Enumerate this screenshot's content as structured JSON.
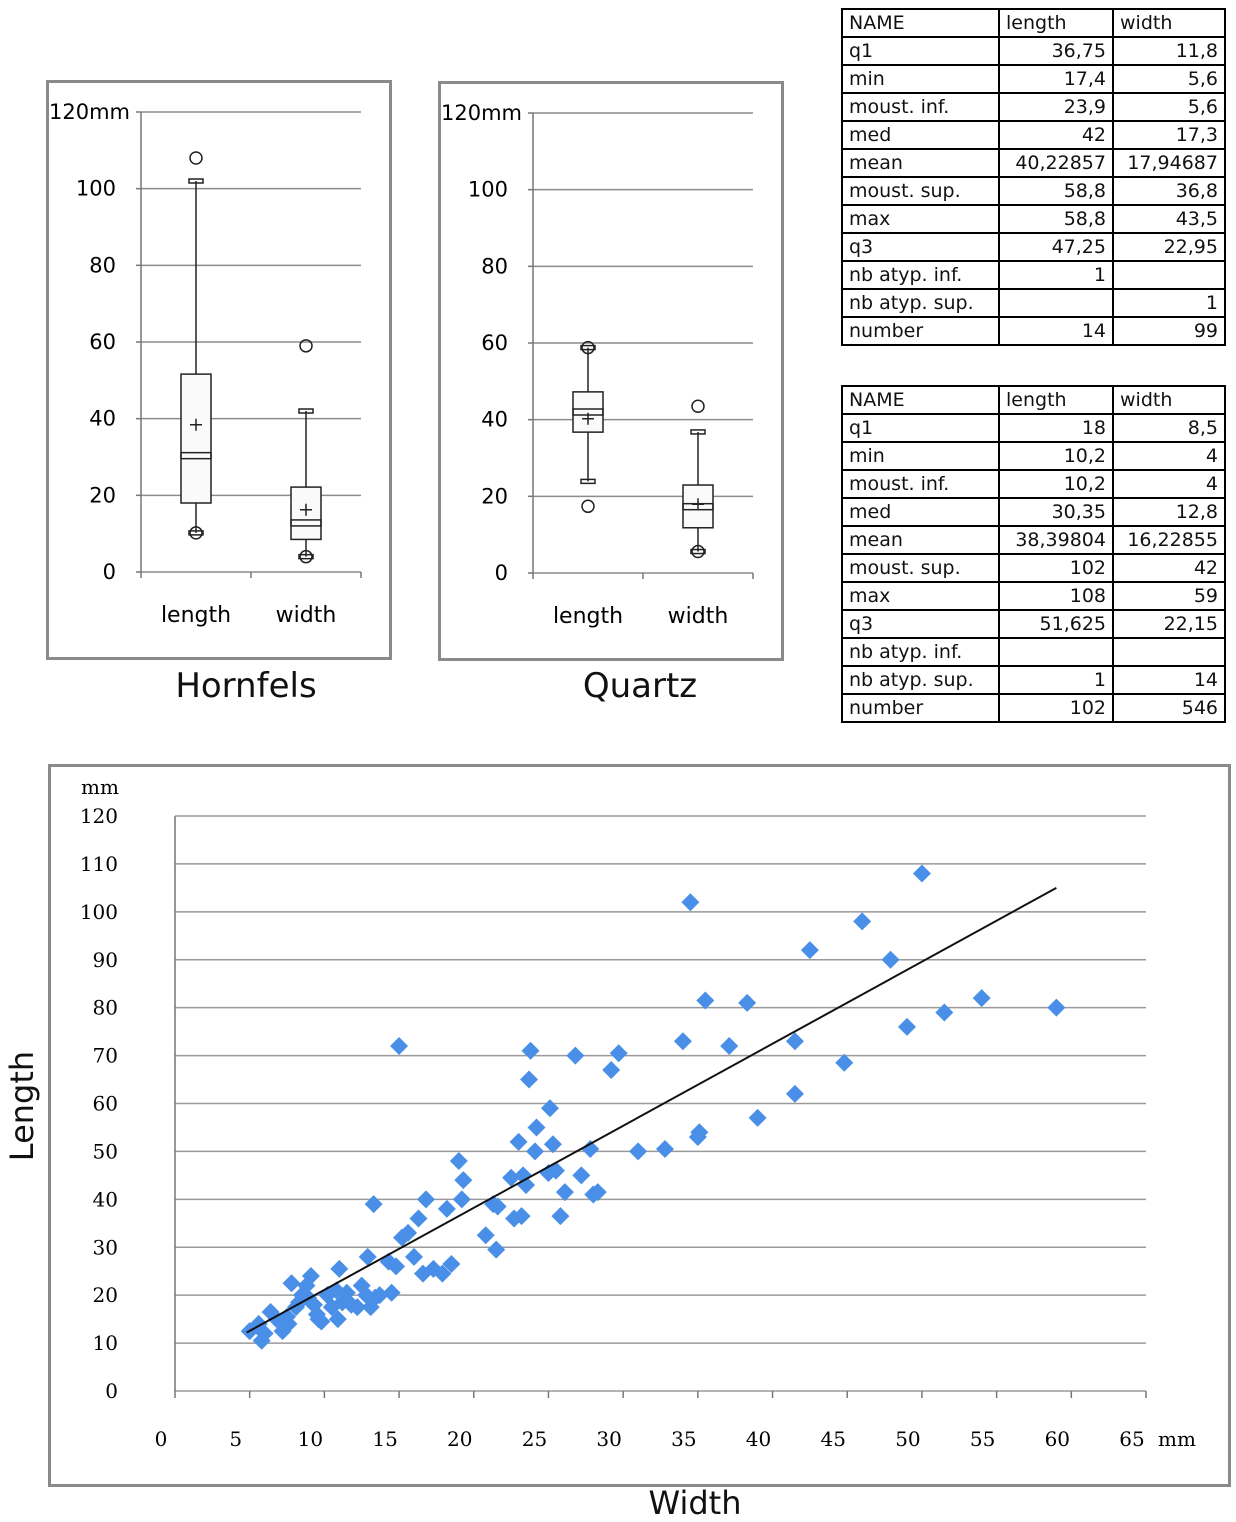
{
  "boxplots": [
    {
      "title": "Hornfels",
      "y_top_label": "120mm",
      "y_ticks": [
        "100",
        "80",
        "60",
        "40",
        "20",
        "0"
      ],
      "categories": [
        "length",
        "width"
      ]
    },
    {
      "title": "Quartz",
      "y_top_label": "120mm",
      "y_ticks": [
        "100",
        "80",
        "60",
        "40",
        "20",
        "0"
      ],
      "categories": [
        "length",
        "width"
      ]
    }
  ],
  "tables": [
    {
      "header": [
        "NAME",
        "length",
        "width"
      ],
      "rows": [
        [
          "q1",
          "36,75",
          "11,8"
        ],
        [
          "min",
          "17,4",
          "5,6"
        ],
        [
          "moust. inf.",
          "23,9",
          "5,6"
        ],
        [
          "med",
          "42",
          "17,3"
        ],
        [
          "mean",
          "40,22857",
          "17,94687"
        ],
        [
          "moust. sup.",
          "58,8",
          "36,8"
        ],
        [
          "max",
          "58,8",
          "43,5"
        ],
        [
          "q3",
          "47,25",
          "22,95"
        ],
        [
          "nb atyp. inf.",
          "1",
          ""
        ],
        [
          "nb atyp. sup.",
          "",
          "1"
        ],
        [
          "number",
          "14",
          "99"
        ]
      ]
    },
    {
      "header": [
        "NAME",
        "length",
        "width"
      ],
      "rows": [
        [
          "q1",
          "18",
          "8,5"
        ],
        [
          "min",
          "10,2",
          "4"
        ],
        [
          "moust. inf.",
          "10,2",
          "4"
        ],
        [
          "med",
          "30,35",
          "12,8"
        ],
        [
          "mean",
          "38,39804",
          "16,22855"
        ],
        [
          "moust. sup.",
          "102",
          "42"
        ],
        [
          "max",
          "108",
          "59"
        ],
        [
          "q3",
          "51,625",
          "22,15"
        ],
        [
          "nb atyp. inf.",
          "",
          ""
        ],
        [
          "nb atyp. sup.",
          "1",
          "14"
        ],
        [
          "number",
          "102",
          "546"
        ]
      ]
    }
  ],
  "chart_data": [
    {
      "type": "box",
      "title": "Hornfels",
      "ylim": [
        0,
        120
      ],
      "y_unit": "mm",
      "categories": [
        "length",
        "width"
      ],
      "boxes": [
        {
          "q1": 18,
          "median": 30.35,
          "q3": 51.625,
          "mean": 38.39804,
          "whisker_low": 10.2,
          "whisker_high": 102,
          "outliers": [
            108
          ]
        },
        {
          "q1": 8.5,
          "median": 12.8,
          "q3": 22.15,
          "mean": 16.22855,
          "whisker_low": 4,
          "whisker_high": 42,
          "outliers": [
            59
          ]
        }
      ]
    },
    {
      "type": "box",
      "title": "Quartz",
      "ylim": [
        0,
        120
      ],
      "y_unit": "mm",
      "categories": [
        "length",
        "width"
      ],
      "boxes": [
        {
          "q1": 36.75,
          "median": 42,
          "q3": 47.25,
          "mean": 40.22857,
          "whisker_low": 23.9,
          "whisker_high": 58.8,
          "outliers": [
            17.4
          ]
        },
        {
          "q1": 11.8,
          "median": 17.3,
          "q3": 22.95,
          "mean": 17.94687,
          "whisker_low": 5.6,
          "whisker_high": 36.8,
          "outliers": [
            43.5
          ]
        }
      ]
    },
    {
      "type": "scatter",
      "xlabel": "Width",
      "ylabel": "Length",
      "x_unit": "mm",
      "y_unit": "mm",
      "xlim": [
        0,
        65
      ],
      "ylim": [
        0,
        120
      ],
      "x_ticks": [
        "0",
        "5",
        "10",
        "15",
        "20",
        "25",
        "30",
        "35",
        "40",
        "45",
        "50",
        "55",
        "60",
        "65"
      ],
      "y_ticks": [
        "0",
        "10",
        "20",
        "30",
        "40",
        "50",
        "60",
        "70",
        "80",
        "90",
        "100",
        "110",
        "120"
      ],
      "grid": "horizontal",
      "marker_color": "#4a8fe7",
      "trendline": {
        "x": [
          4.8,
          59
        ],
        "y": [
          12.2,
          105
        ]
      },
      "points": [
        [
          5.0,
          12.5
        ],
        [
          5.6,
          14.0
        ],
        [
          5.8,
          10.5
        ],
        [
          6.4,
          16.5
        ],
        [
          6.8,
          15.0
        ],
        [
          6.0,
          12.0
        ],
        [
          7.2,
          12.5
        ],
        [
          7.5,
          15.5
        ],
        [
          7.8,
          22.5
        ],
        [
          8.1,
          17.5
        ],
        [
          8.5,
          20.0
        ],
        [
          8.8,
          22.0
        ],
        [
          9.1,
          24.0
        ],
        [
          9.3,
          18.0
        ],
        [
          9.6,
          15.0
        ],
        [
          9.8,
          14.5
        ],
        [
          10.2,
          20.0
        ],
        [
          10.5,
          17.5
        ],
        [
          10.9,
          15.0
        ],
        [
          11.2,
          18.5
        ],
        [
          11.5,
          20.5
        ],
        [
          11.8,
          18.0
        ],
        [
          12.2,
          17.5
        ],
        [
          12.5,
          22.0
        ],
        [
          12.8,
          20.0
        ],
        [
          13.1,
          17.5
        ],
        [
          13.4,
          19.5
        ],
        [
          12.9,
          28.0
        ],
        [
          13.7,
          20.0
        ],
        [
          11.0,
          25.5
        ],
        [
          14.3,
          27.0
        ],
        [
          14.8,
          26.0
        ],
        [
          14.5,
          20.5
        ],
        [
          15.2,
          32.0
        ],
        [
          15.6,
          33.0
        ],
        [
          16.3,
          36.0
        ],
        [
          16.8,
          40.0
        ],
        [
          16.0,
          28.0
        ],
        [
          16.6,
          24.5
        ],
        [
          17.3,
          25.5
        ],
        [
          17.9,
          24.5
        ],
        [
          18.2,
          38.0
        ],
        [
          18.5,
          26.5
        ],
        [
          19.2,
          40.0
        ],
        [
          19.0,
          48.0
        ],
        [
          19.3,
          44.0
        ],
        [
          15.0,
          72.0
        ],
        [
          13.3,
          39.0
        ],
        [
          10.8,
          21.0
        ],
        [
          9.5,
          16.0
        ],
        [
          8.9,
          19.5
        ],
        [
          8.3,
          18.5
        ],
        [
          7.6,
          14.0
        ],
        [
          20.8,
          32.5
        ],
        [
          21.5,
          29.5
        ],
        [
          21.3,
          39.0
        ],
        [
          21.6,
          38.5
        ],
        [
          22.5,
          44.5
        ],
        [
          22.7,
          36.0
        ],
        [
          23.0,
          52.0
        ],
        [
          23.2,
          36.5
        ],
        [
          23.3,
          45.0
        ],
        [
          23.5,
          43.0
        ],
        [
          23.7,
          65.0
        ],
        [
          23.8,
          71.0
        ],
        [
          24.2,
          55.0
        ],
        [
          24.1,
          50.0
        ],
        [
          25.0,
          45.5
        ],
        [
          25.1,
          59.0
        ],
        [
          25.3,
          51.5
        ],
        [
          25.5,
          46.0
        ],
        [
          25.8,
          36.5
        ],
        [
          26.1,
          41.5
        ],
        [
          26.8,
          70.0
        ],
        [
          27.2,
          45.0
        ],
        [
          27.8,
          50.5
        ],
        [
          28.0,
          41.0
        ],
        [
          28.3,
          41.5
        ],
        [
          29.2,
          67.0
        ],
        [
          29.7,
          70.5
        ],
        [
          31.0,
          50.0
        ],
        [
          32.8,
          50.5
        ],
        [
          34.0,
          73.0
        ],
        [
          34.5,
          102.0
        ],
        [
          35.1,
          54.0
        ],
        [
          35.0,
          53.0
        ],
        [
          35.5,
          81.5
        ],
        [
          37.1,
          72.0
        ],
        [
          38.3,
          81.0
        ],
        [
          39.0,
          57.0
        ],
        [
          41.5,
          73.0
        ],
        [
          41.5,
          62.0
        ],
        [
          42.5,
          92.0
        ],
        [
          44.8,
          68.5
        ],
        [
          46.0,
          98.0
        ],
        [
          47.9,
          90.0
        ],
        [
          49.0,
          76.0
        ],
        [
          50.0,
          108.0
        ],
        [
          51.5,
          79.0
        ],
        [
          54.0,
          82.0
        ],
        [
          59.0,
          80.0
        ]
      ]
    }
  ]
}
